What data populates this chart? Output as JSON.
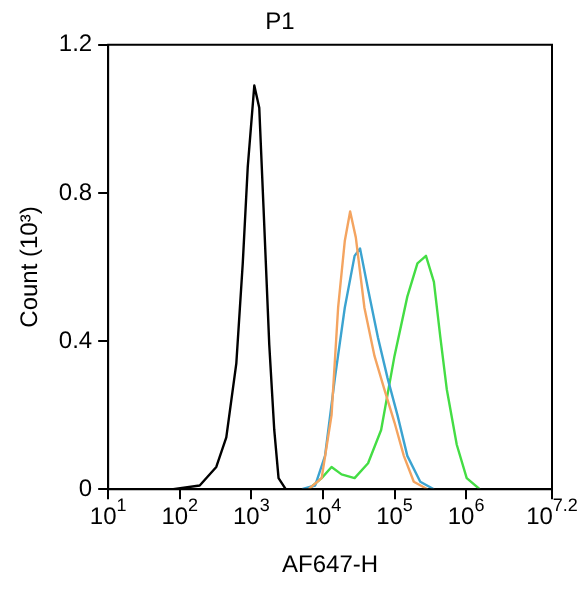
{
  "chart_data": {
    "type": "line",
    "title": "P1",
    "xlabel": "AF647-H",
    "ylabel": "Count (10³)",
    "log": "x",
    "grid": false,
    "legend": false,
    "marker": "none",
    "line_style": "solid",
    "xlim": [
      10,
      15848932
    ],
    "xticks": [
      {
        "value": 10,
        "label": "10$^{1}$"
      },
      {
        "value": 100,
        "label": "10$^{2}$"
      },
      {
        "value": 1000,
        "label": "10$^{3}$"
      },
      {
        "value": 10000,
        "label": "10$^{4}$"
      },
      {
        "value": 100000,
        "label": "10$^{5}$"
      },
      {
        "value": 1000000,
        "label": "10$^{6}$"
      },
      {
        "value": 15848932,
        "label": "10$^{7.2}$"
      }
    ],
    "ylim": [
      0,
      1.2
    ],
    "yticks": [
      0,
      0.4,
      0.8,
      1.2
    ],
    "series": [
      {
        "color": "#000000",
        "x": [
          81,
          190,
          324,
          447,
          617,
          759,
          891,
          1100,
          1290,
          1480,
          1780,
          2090,
          2400,
          3020
        ],
        "values": [
          0,
          0.01,
          0.06,
          0.14,
          0.34,
          0.61,
          0.87,
          1.09,
          1.03,
          0.76,
          0.39,
          0.16,
          0.03,
          0
        ]
      },
      {
        "color": "#f4a460",
        "x": [
          6300,
          9600,
          13200,
          16300,
          20200,
          24000,
          28800,
          38000,
          52500,
          72000,
          100000,
          135000,
          186000,
          288000
        ],
        "values": [
          0,
          0.03,
          0.2,
          0.49,
          0.67,
          0.75,
          0.68,
          0.49,
          0.36,
          0.27,
          0.18,
          0.09,
          0.02,
          0
        ]
      },
      {
        "color": "#3ba3d0",
        "x": [
          5100,
          7800,
          10700,
          14700,
          20200,
          27700,
          33000,
          42700,
          58600,
          80000,
          110000,
          151000,
          229000,
          355000
        ],
        "values": [
          0,
          0.01,
          0.09,
          0.3,
          0.49,
          0.63,
          0.65,
          0.54,
          0.41,
          0.3,
          0.2,
          0.09,
          0.02,
          0
        ]
      },
      {
        "color": "#44dd44",
        "x": [
          6300,
          9600,
          13200,
          18200,
          27700,
          42700,
          65000,
          100000,
          151000,
          209000,
          275000,
          355000,
          437000,
          537000,
          741000,
          1020000,
          1550000
        ],
        "values": [
          0,
          0.03,
          0.06,
          0.04,
          0.03,
          0.07,
          0.16,
          0.36,
          0.52,
          0.61,
          0.63,
          0.56,
          0.41,
          0.27,
          0.12,
          0.03,
          0
        ]
      }
    ]
  }
}
